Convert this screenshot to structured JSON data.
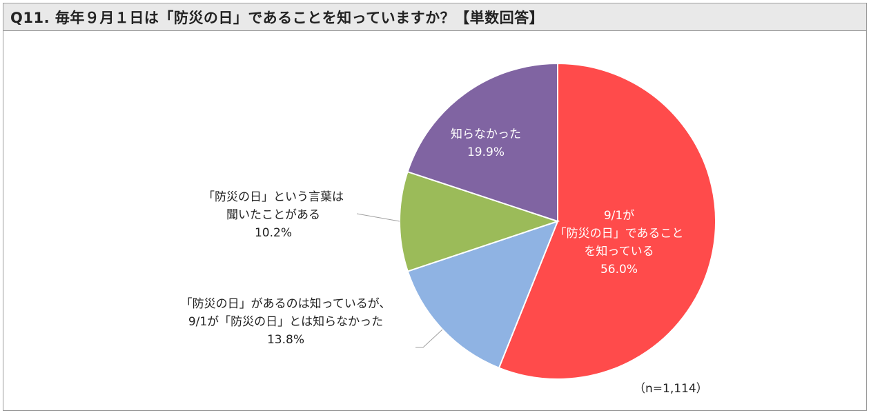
{
  "title": "Q11. 毎年９月１日は「防災の日」であることを知っていますか？【単数回答】",
  "sample_note": "（n=1,114）",
  "chart_data": {
    "type": "pie",
    "title": "Q11. 毎年９月１日は「防災の日」であることを知っていますか？【単数回答】",
    "start_angle_deg": 0,
    "direction": "clockwise",
    "slices": [
      {
        "label_lines": [
          "9/1が",
          "「防災の日」であること",
          "を知っている"
        ],
        "value": 56.0,
        "value_label": "56.0%",
        "color": "#ff4b4b",
        "label_color": "#ffffff"
      },
      {
        "label_lines": [
          "「防災の日」があるのは知っているが、",
          "9/1が「防災の日」とは知らなかった"
        ],
        "value": 13.8,
        "value_label": "13.8%",
        "color": "#8fb3e3",
        "label_color": "#222222"
      },
      {
        "label_lines": [
          "「防災の日」という言葉は",
          "聞いたことがある"
        ],
        "value": 10.2,
        "value_label": "10.2%",
        "color": "#9bbb59",
        "label_color": "#222222"
      },
      {
        "label_lines": [
          "知らなかった"
        ],
        "value": 19.9,
        "value_label": "19.9%",
        "color": "#8064a2",
        "label_color": "#ffffff"
      }
    ]
  }
}
